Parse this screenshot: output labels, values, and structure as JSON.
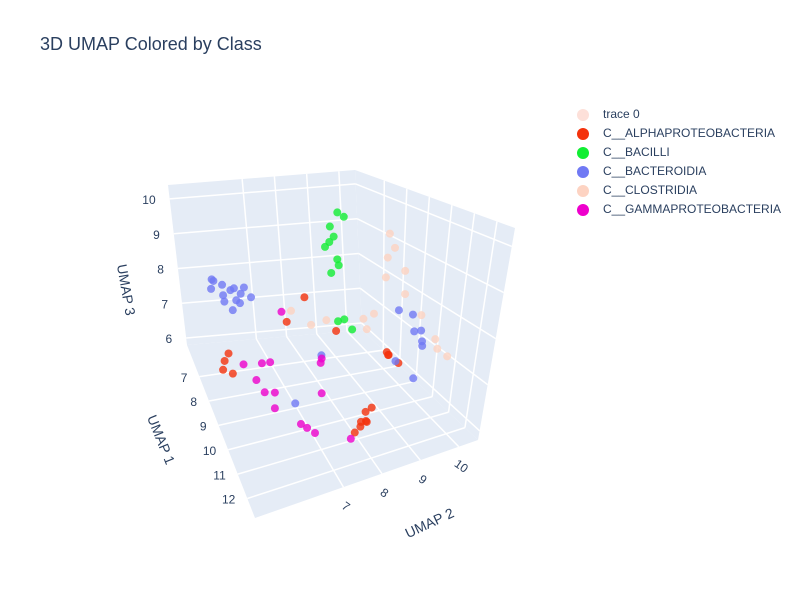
{
  "chart_data": {
    "type": "scatter3d",
    "title": "3D UMAP Colored by Class",
    "x_label": "UMAP 1",
    "y_label": "UMAP 2",
    "z_label": "UMAP 3",
    "xlim": [
      5.7,
      12.8
    ],
    "ylim": [
      4.7,
      10.5
    ],
    "zlim": [
      5.8,
      10.4
    ],
    "xticks": [
      7,
      8,
      9,
      10,
      11,
      12
    ],
    "yticks": [
      7,
      8,
      9,
      10
    ],
    "zticks": [
      6,
      7,
      8,
      9,
      10
    ],
    "grid": true,
    "legend": "right",
    "series": [
      {
        "name": "trace 0",
        "color": "#fde0d9",
        "x": [],
        "y": [],
        "z": []
      },
      {
        "name": "C__ALPHAPROTEOBACTERIA",
        "color": "#f4320c",
        "x": [
          7.83,
          8.04,
          7.69,
          8.19,
          11.38,
          11.03,
          10.67,
          11.24,
          11.74,
          12.09,
          10.81,
          9.61,
          9.25,
          9.82,
          9.96,
          7.48,
          6.77,
          8.19
        ],
        "y": [
          5.28,
          5.16,
          5.45,
          5.4,
          7.89,
          8.18,
          8.47,
          8.06,
          7.6,
          7.6,
          8.3,
          9.34,
          9.46,
          9.22,
          9.46,
          7.31,
          8.18,
          8.47
        ],
        "z": [
          6.63,
          6.54,
          6.72,
          6.49,
          6.26,
          6.17,
          6.26,
          6.49,
          6.35,
          6.72,
          6.03,
          6.9,
          6.81,
          7.0,
          6.81,
          7.18,
          7.41,
          7.09
        ]
      },
      {
        "name": "C__BACILLI",
        "color": "#11ee33",
        "x": [
          6.41,
          6.55,
          6.41,
          6.69,
          6.55,
          6.41,
          6.77,
          6.62,
          6.84,
          7.83,
          7.97,
          7.69
        ],
        "y": [
          9.46,
          9.57,
          9.22,
          9.17,
          9.11,
          9.05,
          9.22,
          9.34,
          8.99,
          8.88,
          9.05,
          8.76
        ],
        "z": [
          9.48,
          9.39,
          9.11,
          8.93,
          8.74,
          8.56,
          8.33,
          8.1,
          8.01,
          7.18,
          6.95,
          7.09
        ]
      },
      {
        "name": "C__BACTEROIDIA",
        "color": "#7079f4",
        "x": [
          6.06,
          5.84,
          6.27,
          5.91,
          6.13,
          6.41,
          5.98,
          6.2,
          6.06,
          6.34,
          6.55,
          6.27,
          6.41,
          5.84,
          9.25,
          9.61,
          8.9,
          9.96,
          9.39,
          8.19,
          9.96,
          8.9,
          8.54,
          9.61
        ],
        "y": [
          5.57,
          5.74,
          5.86,
          5.98,
          6.15,
          6.21,
          6.32,
          6.44,
          6.61,
          5.86,
          6.03,
          6.73,
          6.32,
          5.69,
          10.21,
          10.21,
          10.33,
          10.09,
          10.38,
          10.27,
          9.92,
          9.92,
          7.89,
          6.73
        ],
        "z": [
          7.55,
          7.64,
          7.46,
          7.55,
          7.5,
          7.36,
          7.46,
          7.41,
          7.5,
          7.32,
          7.18,
          7.32,
          7.27,
          7.69,
          7.18,
          7.32,
          7.46,
          7.09,
          6.95,
          6.03,
          6.35,
          7.64,
          6.72,
          6.26
        ]
      },
      {
        "name": "C__CLOSTRIDIA",
        "color": "#fdd3c2",
        "x": [
          7.48,
          7.83,
          7.69,
          8.19,
          7.83,
          8.54,
          9.25,
          9.96,
          10.32,
          10.67,
          6.77,
          7.12,
          7.48,
          7.12,
          7.83,
          8.19
        ],
        "y": [
          10.38,
          10.33,
          10.21,
          10.44,
          10.09,
          10.27,
          10.38,
          10.44,
          10.33,
          10.44,
          10.33,
          9.92,
          9.63,
          7.6,
          7.89,
          8.18
        ],
        "z": [
          9.11,
          8.84,
          8.56,
          8.33,
          8.1,
          7.87,
          7.55,
          7.18,
          7.09,
          7.0,
          6.72,
          6.49,
          6.95,
          7.27,
          7.18,
          7.41
        ]
      },
      {
        "name": "C__GAMMAPROTEOBACTERIA",
        "color": "#ee00cc",
        "x": [
          8.9,
          9.25,
          8.54,
          9.11,
          8.68,
          9.61,
          8.4,
          11.38,
          11.52,
          11.24,
          9.25,
          9.61,
          8.9,
          12.23,
          7.83
        ],
        "y": [
          5.86,
          5.98,
          6.15,
          6.32,
          5.57,
          6.15,
          6.44,
          6.44,
          6.61,
          6.32,
          7.6,
          7.48,
          7.72,
          7.31,
          7.02
        ],
        "z": [
          6.63,
          6.49,
          6.81,
          6.35,
          6.95,
          6.26,
          6.72,
          6.58,
          6.49,
          6.63,
          7.0,
          6.35,
          6.72,
          6.49,
          7.64
        ]
      }
    ]
  }
}
